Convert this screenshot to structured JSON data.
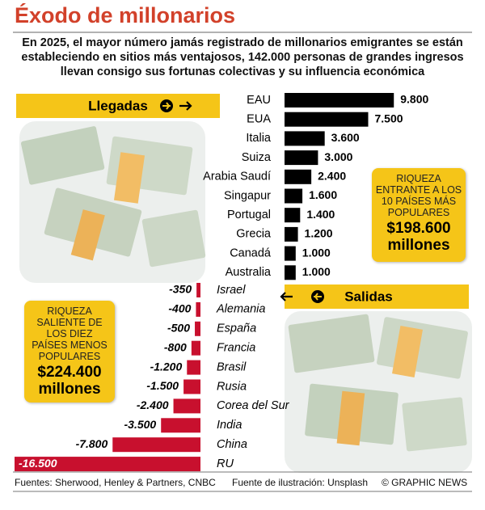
{
  "header": {
    "title": "Éxodo de millonarios",
    "subtitle": "En 2025, el mayor número jamás registrado de millonarios emigrantes se están estableciendo en sitios más ventajosos, 142.000 personas de grandes ingresos llevan consigo sus fortunas colectivas y su influencia económica"
  },
  "chart_data": [
    {
      "type": "bar",
      "orientation": "horizontal",
      "title": "Llegadas",
      "categories": [
        "EAU",
        "EUA",
        "Italia",
        "Suiza",
        "Arabia Saudí",
        "Singapur",
        "Portugal",
        "Grecia",
        "Canadá",
        "Australia"
      ],
      "values": [
        9800,
        7500,
        3600,
        3000,
        2400,
        1600,
        1400,
        1200,
        1000,
        1000
      ],
      "value_labels": [
        "9.800",
        "7.500",
        "3.600",
        "3.000",
        "2.400",
        "1.600",
        "1.400",
        "1.200",
        "1.000",
        "1.000"
      ],
      "color": "#000000",
      "xlim": [
        0,
        10000
      ],
      "annotation": {
        "label": "RIQUEZA ENTRANTE A LOS 10 PAÍSES MÁS POPULARES",
        "value": "$198.600 millones"
      }
    },
    {
      "type": "bar",
      "orientation": "horizontal",
      "title": "Salidas",
      "categories": [
        "Israel",
        "Alemania",
        "España",
        "Francia",
        "Brasil",
        "Rusia",
        "Corea del Sur",
        "India",
        "China",
        "RU"
      ],
      "values": [
        -350,
        -400,
        -500,
        -800,
        -1200,
        -1500,
        -2400,
        -3500,
        -7800,
        -16500
      ],
      "value_labels": [
        "-350",
        "-400",
        "-500",
        "-800",
        "-1.200",
        "-1.500",
        "-2.400",
        "-3.500",
        "-7.800",
        "-16.500"
      ],
      "color": "#c8102e",
      "xlim": [
        -16500,
        0
      ],
      "annotation": {
        "label": "RIQUEZA SALIENTE DE LOS DIEZ PAÍSES MENOS POPULARES",
        "value": "$224.400 millones"
      }
    }
  ],
  "footer": {
    "sources": "Fuentes: Sherwood, Henley & Partners, CNBC",
    "illustration": "Fuente de ilustración: Unsplash",
    "credit": "© GRAPHIC NEWS"
  }
}
